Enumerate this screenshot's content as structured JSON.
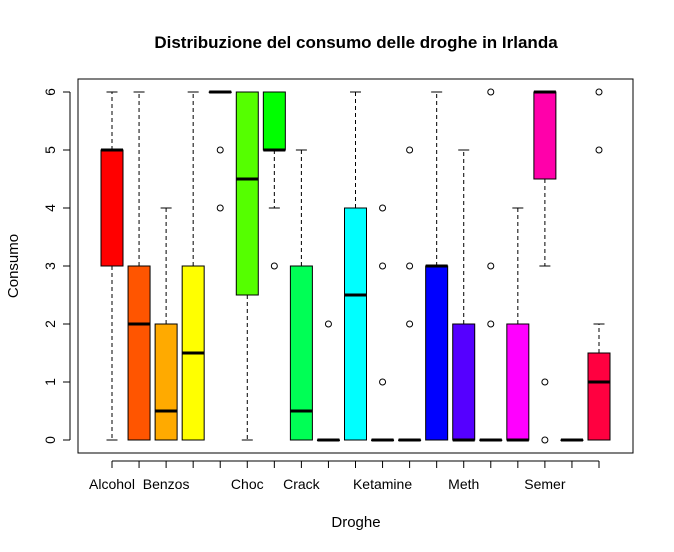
{
  "chart_data": {
    "type": "box",
    "title": "Distribuzione del consumo delle droghe in Irlanda",
    "xlabel": "Droghe",
    "ylabel": "Consumo",
    "ylim": [
      0,
      6
    ],
    "yticks": [
      0,
      1,
      2,
      3,
      4,
      5,
      6
    ],
    "x_tick_labels_shown": [
      "Alcohol",
      "Benzos",
      "Choc",
      "Crack",
      "Ketamine",
      "Meth",
      "Semer"
    ],
    "boxes": [
      {
        "label": "Alcohol",
        "color": "#FF0000",
        "q1": 3,
        "median": 5,
        "q3": 5,
        "lower_whisker": 0,
        "upper_whisker": 6,
        "outliers": []
      },
      {
        "label": "",
        "color": "#FF5500",
        "q1": 0,
        "median": 2,
        "q3": 3,
        "lower_whisker": 0,
        "upper_whisker": 6,
        "outliers": []
      },
      {
        "label": "Benzos",
        "color": "#FFAA00",
        "q1": 0,
        "median": 0.5,
        "q3": 2,
        "lower_whisker": 0,
        "upper_whisker": 4,
        "outliers": []
      },
      {
        "label": "",
        "color": "#FFFF00",
        "q1": 0,
        "median": 1.5,
        "q3": 3,
        "lower_whisker": 0,
        "upper_whisker": 6,
        "outliers": []
      },
      {
        "label": "",
        "color": "#AAFF00",
        "q1": 6,
        "median": 6,
        "q3": 6,
        "lower_whisker": 6,
        "upper_whisker": 6,
        "outliers": [
          4,
          5
        ]
      },
      {
        "label": "Choc",
        "color": "#55FF00",
        "q1": 2.5,
        "median": 4.5,
        "q3": 6,
        "lower_whisker": 0,
        "upper_whisker": 6,
        "outliers": []
      },
      {
        "label": "",
        "color": "#00FF00",
        "q1": 5,
        "median": 5,
        "q3": 6,
        "lower_whisker": 4,
        "upper_whisker": 6,
        "outliers": [
          3
        ]
      },
      {
        "label": "Crack",
        "color": "#00FF55",
        "q1": 0,
        "median": 0.5,
        "q3": 3,
        "lower_whisker": 0,
        "upper_whisker": 5,
        "outliers": []
      },
      {
        "label": "",
        "color": "#00FFAA",
        "q1": 0,
        "median": 0,
        "q3": 0,
        "lower_whisker": 0,
        "upper_whisker": 0,
        "outliers": [
          2
        ]
      },
      {
        "label": "",
        "color": "#00FFFF",
        "q1": 0,
        "median": 2.5,
        "q3": 4,
        "lower_whisker": 0,
        "upper_whisker": 6,
        "outliers": []
      },
      {
        "label": "Ketamine",
        "color": "#00AAFF",
        "q1": 0,
        "median": 0,
        "q3": 0,
        "lower_whisker": 0,
        "upper_whisker": 0,
        "outliers": [
          1,
          3,
          4
        ]
      },
      {
        "label": "",
        "color": "#0055FF",
        "q1": 0,
        "median": 0,
        "q3": 0,
        "lower_whisker": 0,
        "upper_whisker": 0,
        "outliers": [
          2,
          3,
          5
        ]
      },
      {
        "label": "",
        "color": "#0000FF",
        "q1": 0,
        "median": 3,
        "q3": 3,
        "lower_whisker": 0,
        "upper_whisker": 6,
        "outliers": []
      },
      {
        "label": "Meth",
        "color": "#5500FF",
        "q1": 0,
        "median": 0,
        "q3": 2,
        "lower_whisker": 0,
        "upper_whisker": 5,
        "outliers": []
      },
      {
        "label": "",
        "color": "#AA00FF",
        "q1": 0,
        "median": 0,
        "q3": 0,
        "lower_whisker": 0,
        "upper_whisker": 0,
        "outliers": [
          2,
          3,
          6
        ]
      },
      {
        "label": "",
        "color": "#FF00FF",
        "q1": 0,
        "median": 0,
        "q3": 2,
        "lower_whisker": 0,
        "upper_whisker": 4,
        "outliers": []
      },
      {
        "label": "Semer",
        "color": "#FF00AA",
        "q1": 4.5,
        "median": 6,
        "q3": 6,
        "lower_whisker": 3,
        "upper_whisker": 6,
        "outliers": [
          0,
          1
        ]
      },
      {
        "label": "",
        "color": "#FF0055",
        "q1": 0,
        "median": 0,
        "q3": 0,
        "lower_whisker": 0,
        "upper_whisker": 0,
        "outliers": []
      },
      {
        "label": "",
        "color": "#FF0040",
        "q1": 0,
        "median": 1,
        "q3": 1.5,
        "lower_whisker": 0,
        "upper_whisker": 2,
        "outliers": [
          5,
          6
        ]
      }
    ]
  }
}
